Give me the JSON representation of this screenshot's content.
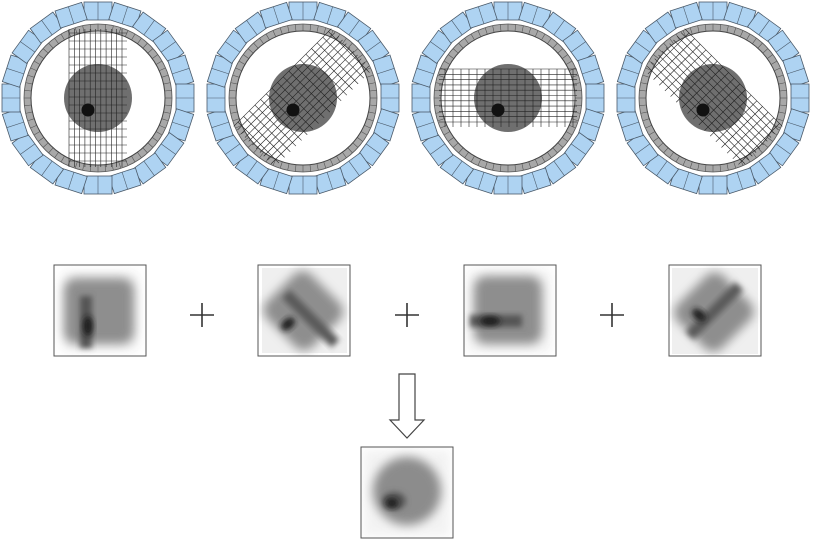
{
  "scanners": [
    {
      "id": "projection-0",
      "angle_deg": 0
    },
    {
      "id": "projection-45",
      "angle_deg": 45
    },
    {
      "id": "projection-90",
      "angle_deg": 90
    },
    {
      "id": "projection-135",
      "angle_deg": 135
    }
  ],
  "backprojections": [
    {
      "id": "backprojection-0",
      "angle_deg": 0
    },
    {
      "id": "backprojection-45",
      "angle_deg": 45
    },
    {
      "id": "backprojection-90",
      "angle_deg": 90
    },
    {
      "id": "backprojection-135",
      "angle_deg": 135
    }
  ],
  "operators": [
    "plus",
    "plus",
    "plus"
  ],
  "result": {
    "id": "summed-reconstruction"
  },
  "colors": {
    "detector_fill": "#aed3f2",
    "detector_stroke": "#4a5a6a",
    "ring_fill": "#a8a8a8",
    "phantom_fill": "#6f6f6f",
    "hot_spot": "#111111"
  }
}
